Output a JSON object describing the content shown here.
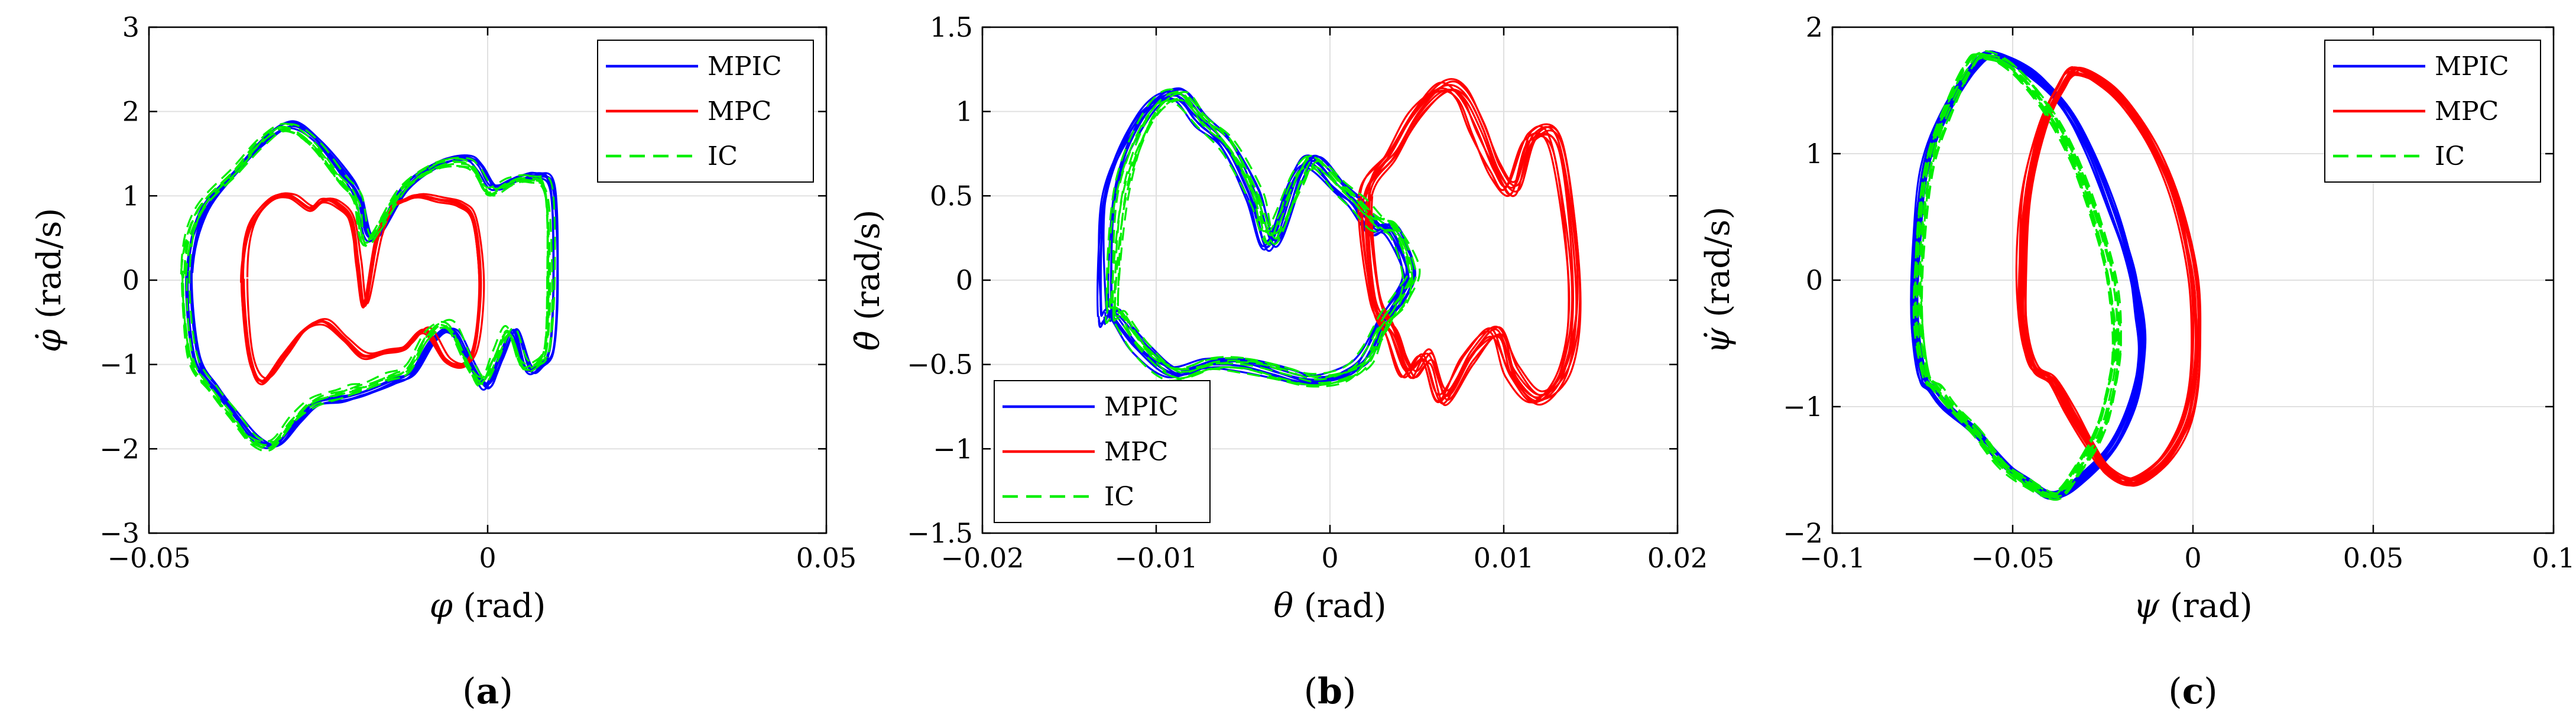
{
  "colors": {
    "MPIC": "#0000ff",
    "MPC": "#ff0000",
    "IC": "#00ee00",
    "grid": "#e0e0e0",
    "axis": "#000000"
  },
  "chart_data": [
    {
      "type": "line",
      "id": "a",
      "caption_label": "a",
      "xlabel_symbol": "φ",
      "xlabel_unit": "(rad)",
      "ylabel_symbol": "φ̇",
      "ylabel_unit": "(rad/s)",
      "xlim": [
        -0.05,
        0.05
      ],
      "ylim": [
        -3,
        3
      ],
      "xticks": [
        -0.05,
        0,
        0.05
      ],
      "xtick_labels": [
        "−0.05",
        "0",
        "0.05"
      ],
      "yticks": [
        -3,
        -2,
        -1,
        0,
        1,
        2,
        3
      ],
      "ytick_labels": [
        "−3",
        "−2",
        "−1",
        "0",
        "1",
        "2",
        "3"
      ],
      "grid": true,
      "legend_position": "top-right",
      "series": [
        {
          "name": "MPIC",
          "style": "solid",
          "copies": 6,
          "jitter": [
            0.0006,
            0.05
          ],
          "x": [
            -0.044,
            -0.042,
            -0.037,
            -0.033,
            -0.029,
            -0.025,
            -0.021,
            -0.019,
            -0.017,
            -0.012,
            -0.007,
            -0.003,
            -0.001,
            0.001,
            0.004,
            0.007,
            0.0095,
            0.01,
            0.0095,
            0.008,
            0.006,
            0.004,
            0.002,
            0,
            -0.002,
            -0.005,
            -0.008,
            -0.011,
            -0.014,
            -0.017,
            -0.019,
            -0.021,
            -0.025,
            -0.028,
            -0.031,
            -0.034,
            -0.037,
            -0.04,
            -0.043,
            -0.044
          ],
          "y": [
            0.1,
            0.8,
            1.3,
            1.65,
            1.85,
            1.65,
            1.25,
            1.0,
            0.5,
            1.1,
            1.4,
            1.45,
            1.35,
            1.1,
            1.2,
            1.25,
            1.1,
            0.0,
            -0.8,
            -1.0,
            -1.05,
            -0.6,
            -0.9,
            -1.25,
            -1.05,
            -0.6,
            -0.7,
            -1.1,
            -1.2,
            -1.3,
            -1.35,
            -1.4,
            -1.45,
            -1.65,
            -1.95,
            -1.9,
            -1.6,
            -1.3,
            -0.9,
            0.1
          ]
        },
        {
          "name": "MPC",
          "style": "solid",
          "copies": 6,
          "jitter": [
            0.0005,
            0.04
          ],
          "x": [
            -0.036,
            -0.035,
            -0.032,
            -0.029,
            -0.026,
            -0.024,
            -0.022,
            -0.02,
            -0.019,
            -0.018,
            -0.016,
            -0.014,
            -0.012,
            -0.01,
            -0.007,
            -0.004,
            -0.002,
            -0.001,
            -0.0015,
            -0.003,
            -0.006,
            -0.009,
            -0.012,
            -0.015,
            -0.018,
            -0.021,
            -0.024,
            -0.027,
            -0.03,
            -0.033,
            -0.035,
            -0.036
          ],
          "y": [
            0.0,
            0.6,
            0.95,
            1.0,
            0.85,
            0.95,
            0.9,
            0.7,
            0.2,
            -0.3,
            0.5,
            0.85,
            0.95,
            1.0,
            0.95,
            0.9,
            0.7,
            0.0,
            -0.7,
            -1.0,
            -0.95,
            -0.6,
            -0.8,
            -0.85,
            -0.9,
            -0.7,
            -0.5,
            -0.6,
            -0.9,
            -1.2,
            -0.9,
            0.0
          ]
        },
        {
          "name": "IC",
          "style": "dashed",
          "copies": 7,
          "jitter": [
            0.0007,
            0.06
          ],
          "x": [
            -0.0445,
            -0.0425,
            -0.037,
            -0.033,
            -0.0295,
            -0.0255,
            -0.0215,
            -0.019,
            -0.0175,
            -0.0125,
            -0.0075,
            -0.0035,
            -0.0015,
            0.0005,
            0.0035,
            0.0065,
            0.009,
            0.0095,
            0.009,
            0.0075,
            0.0055,
            0.0035,
            0.0015,
            -0.0005,
            -0.0025,
            -0.0055,
            -0.0085,
            -0.0115,
            -0.0145,
            -0.0175,
            -0.0195,
            -0.0215,
            -0.0255,
            -0.0285,
            -0.0315,
            -0.0345,
            -0.0375,
            -0.0405,
            -0.0435,
            -0.0445
          ],
          "y": [
            0.1,
            0.8,
            1.3,
            1.65,
            1.8,
            1.6,
            1.2,
            0.95,
            0.45,
            1.05,
            1.35,
            1.4,
            1.3,
            1.05,
            1.15,
            1.2,
            1.05,
            0.0,
            -0.8,
            -1.0,
            -1.0,
            -0.6,
            -0.9,
            -1.2,
            -1.0,
            -0.55,
            -0.65,
            -1.05,
            -1.15,
            -1.25,
            -1.3,
            -1.35,
            -1.45,
            -1.65,
            -1.95,
            -1.9,
            -1.6,
            -1.3,
            -0.9,
            0.1
          ]
        }
      ]
    },
    {
      "type": "line",
      "id": "b",
      "caption_label": "b",
      "xlabel_symbol": "θ",
      "xlabel_unit": "(rad)",
      "ylabel_symbol": "θ̇",
      "ylabel_unit": "(rad/s)",
      "xlim": [
        -0.02,
        0.02
      ],
      "ylim": [
        -1.5,
        1.5
      ],
      "xticks": [
        -0.02,
        -0.01,
        0,
        0.01,
        0.02
      ],
      "xtick_labels": [
        "−0.02",
        "−0.01",
        "0",
        "0.01",
        "0.02"
      ],
      "yticks": [
        -1.5,
        -1,
        -0.5,
        0,
        0.5,
        1,
        1.5
      ],
      "ytick_labels": [
        "−1.5",
        "−1",
        "−0.5",
        "0",
        "0.5",
        "1",
        "1.5"
      ],
      "grid": true,
      "legend_position": "bottom-left",
      "series": [
        {
          "name": "MPIC",
          "style": "solid",
          "copies": 8,
          "jitter": [
            0.0004,
            0.04
          ],
          "x": [
            -0.013,
            -0.0128,
            -0.011,
            -0.009,
            -0.0075,
            -0.006,
            -0.0045,
            -0.0035,
            -0.002,
            -0.001,
            0.0005,
            0.0015,
            0.0025,
            0.0035,
            0.0045,
            0.004,
            0.003,
            0.002,
            0.001,
            -0.001,
            -0.003,
            -0.005,
            -0.007,
            -0.009,
            -0.011,
            -0.0125,
            -0.013
          ],
          "y": [
            -0.2,
            0.5,
            0.95,
            1.1,
            0.95,
            0.8,
            0.5,
            0.2,
            0.6,
            0.7,
            0.55,
            0.45,
            0.3,
            0.3,
            0.05,
            -0.1,
            -0.25,
            -0.45,
            -0.55,
            -0.6,
            -0.55,
            -0.5,
            -0.5,
            -0.55,
            -0.4,
            -0.2,
            -0.2
          ]
        },
        {
          "name": "MPC",
          "style": "solid",
          "copies": 9,
          "jitter": [
            0.0004,
            0.04
          ],
          "x": [
            0.002,
            0.0035,
            0.005,
            0.0065,
            0.0075,
            0.0085,
            0.0095,
            0.0105,
            0.0115,
            0.013,
            0.014,
            0.0135,
            0.012,
            0.0105,
            0.0095,
            0.008,
            0.0065,
            0.0055,
            0.0045,
            0.0035,
            0.0025,
            0.002
          ],
          "y": [
            0.5,
            0.75,
            1.0,
            1.15,
            1.1,
            0.9,
            0.65,
            0.55,
            0.85,
            0.8,
            0.0,
            -0.5,
            -0.7,
            -0.55,
            -0.3,
            -0.45,
            -0.7,
            -0.45,
            -0.55,
            -0.3,
            -0.1,
            0.5
          ]
        },
        {
          "name": "IC",
          "style": "dashed",
          "copies": 8,
          "jitter": [
            0.0005,
            0.05
          ],
          "x": [
            -0.0125,
            -0.012,
            -0.0105,
            -0.0088,
            -0.0073,
            -0.0058,
            -0.0043,
            -0.0033,
            -0.0018,
            -0.0008,
            0.0007,
            0.0017,
            0.0027,
            0.0037,
            0.0047,
            0.0042,
            0.0032,
            0.0022,
            0.0012,
            -0.0008,
            -0.0028,
            -0.0048,
            -0.0068,
            -0.0088,
            -0.0108,
            -0.012,
            -0.0125
          ],
          "y": [
            -0.15,
            0.5,
            0.95,
            1.1,
            0.95,
            0.8,
            0.5,
            0.25,
            0.6,
            0.7,
            0.55,
            0.45,
            0.35,
            0.3,
            0.05,
            -0.1,
            -0.25,
            -0.45,
            -0.55,
            -0.6,
            -0.55,
            -0.5,
            -0.5,
            -0.55,
            -0.4,
            -0.2,
            -0.15
          ]
        }
      ]
    },
    {
      "type": "line",
      "id": "c",
      "caption_label": "c",
      "xlabel_symbol": "ψ",
      "xlabel_unit": "(rad)",
      "ylabel_symbol": "ψ̇",
      "ylabel_unit": "(rad/s)",
      "xlim": [
        -0.1,
        0.1
      ],
      "ylim": [
        -2,
        2
      ],
      "xticks": [
        -0.1,
        -0.05,
        0,
        0.05,
        0.1
      ],
      "xtick_labels": [
        "−0.1",
        "−0.05",
        "0",
        "0.05",
        "0.1"
      ],
      "yticks": [
        -2,
        -1,
        0,
        1,
        2
      ],
      "ytick_labels": [
        "−2",
        "−1",
        "0",
        "1",
        "2"
      ],
      "grid": true,
      "legend_position": "top-right",
      "series": [
        {
          "name": "MPIC",
          "style": "solid",
          "copies": 12,
          "jitter": [
            0.0012,
            0.03
          ],
          "x": [
            -0.055,
            -0.045,
            -0.036,
            -0.029,
            -0.022,
            -0.017,
            -0.0145,
            -0.014,
            -0.0165,
            -0.022,
            -0.03,
            -0.038,
            -0.045,
            -0.052,
            -0.06,
            -0.068,
            -0.072,
            -0.075,
            -0.077,
            -0.0765,
            -0.074,
            -0.068,
            -0.06,
            -0.055
          ],
          "y": [
            1.78,
            1.65,
            1.4,
            1.05,
            0.55,
            0.1,
            -0.3,
            -0.6,
            -0.95,
            -1.3,
            -1.55,
            -1.7,
            -1.6,
            -1.45,
            -1.2,
            -1.0,
            -0.85,
            -0.75,
            -0.3,
            0.3,
            0.9,
            1.35,
            1.7,
            1.78
          ]
        },
        {
          "name": "MPC",
          "style": "solid",
          "copies": 12,
          "jitter": [
            0.0012,
            0.03
          ],
          "x": [
            -0.033,
            -0.025,
            -0.018,
            -0.01,
            -0.004,
            0.0,
            0.001,
            0.0,
            -0.003,
            -0.009,
            -0.017,
            -0.024,
            -0.029,
            -0.034,
            -0.039,
            -0.044,
            -0.047,
            -0.0475,
            -0.046,
            -0.042,
            -0.037,
            -0.033
          ],
          "y": [
            1.65,
            1.55,
            1.35,
            1.0,
            0.55,
            0.0,
            -0.5,
            -0.9,
            -1.2,
            -1.45,
            -1.6,
            -1.5,
            -1.3,
            -1.05,
            -0.8,
            -0.7,
            -0.4,
            0.1,
            0.7,
            1.2,
            1.5,
            1.65
          ]
        },
        {
          "name": "IC",
          "style": "dashed",
          "copies": 12,
          "jitter": [
            0.0012,
            0.03
          ],
          "x": [
            -0.0585,
            -0.051,
            -0.043,
            -0.036,
            -0.03,
            -0.025,
            -0.022,
            -0.021,
            -0.0225,
            -0.026,
            -0.032,
            -0.038,
            -0.046,
            -0.053,
            -0.06,
            -0.067,
            -0.071,
            -0.074,
            -0.076,
            -0.0755,
            -0.073,
            -0.068,
            -0.062,
            -0.0585
          ],
          "y": [
            1.78,
            1.7,
            1.45,
            1.15,
            0.75,
            0.3,
            -0.1,
            -0.5,
            -0.85,
            -1.2,
            -1.5,
            -1.7,
            -1.6,
            -1.45,
            -1.2,
            -1.0,
            -0.85,
            -0.75,
            -0.3,
            0.3,
            0.9,
            1.35,
            1.7,
            1.78
          ]
        }
      ]
    }
  ]
}
